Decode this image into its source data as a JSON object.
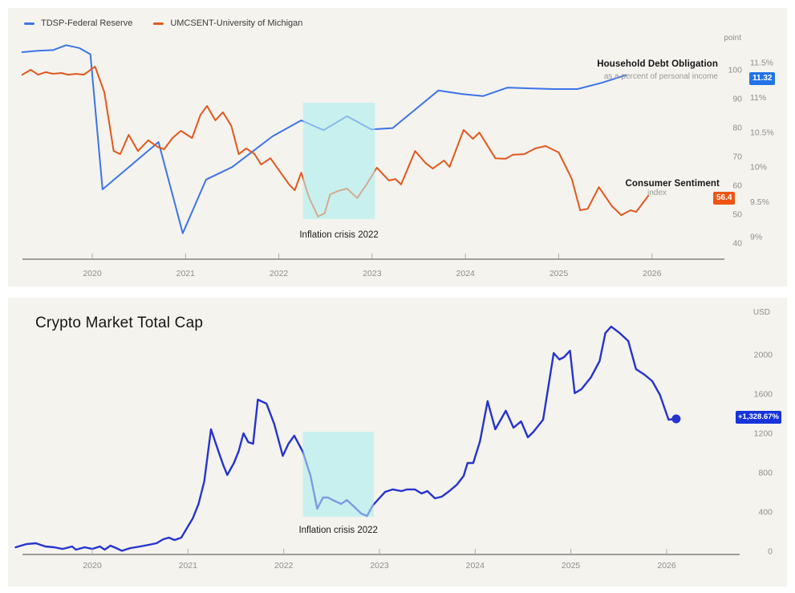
{
  "colors": {
    "panel_bg": "#F4F3EE",
    "blue": "#3D74E8",
    "orange": "#E2581F",
    "dark_blue": "#2534CE",
    "badge_blue": "#2273E8",
    "badge_orange": "#EF5414",
    "badge_dark_blue": "#1734DB",
    "band": "#C9EFEF",
    "axis_line": "#4a4a4a",
    "tick_text": "#8E8E8E"
  },
  "top_chart": {
    "right_labels": {
      "debt_title": "Household Debt Obligation",
      "debt_subtitle": "as a percent of personal income",
      "debt_badge": "11.32",
      "sentiment_title": "Consumer Sentiment",
      "sentiment_subtitle": "index",
      "sentiment_badge": "56.4"
    }
  },
  "bottom_chart": {
    "badge": "+1,328.67%"
  },
  "chart_data": [
    {
      "id": "debt_sentiment",
      "type": "line",
      "x_ticks": [
        2020,
        2021,
        2022,
        2023,
        2024,
        2025,
        2026
      ],
      "x_range": [
        2019.2,
        2026.78
      ],
      "legend_position": "top-left",
      "grid": false,
      "y_axes": [
        {
          "id": "percent",
          "side": "far-right",
          "range": [
            8.75,
            11.9
          ],
          "ticks": [
            {
              "label": "11.5%",
              "value": 11.5
            },
            {
              "label": "11%",
              "value": 11
            },
            {
              "label": "10.5%",
              "value": 10.5
            },
            {
              "label": "10%",
              "value": 10
            },
            {
              "label": "9.5%",
              "value": 9.5
            },
            {
              "label": "9%",
              "value": 9
            }
          ]
        },
        {
          "id": "index",
          "unit": "point",
          "side": "right",
          "range": [
            35,
            104
          ],
          "ticks": [
            {
              "label": "100",
              "value": 100
            },
            {
              "label": "90",
              "value": 90
            },
            {
              "label": "80",
              "value": 80
            },
            {
              "label": "70",
              "value": 70
            },
            {
              "label": "60",
              "value": 60
            },
            {
              "label": "50",
              "value": 50
            },
            {
              "label": "40",
              "value": 40
            }
          ]
        }
      ],
      "series": [
        {
          "name": "TDSP-Federal Reserve",
          "axis": "percent",
          "color_key": "blue",
          "last_value": 11.32,
          "points": [
            [
              2019.25,
              11.65
            ],
            [
              2019.42,
              11.67
            ],
            [
              2019.58,
              11.68
            ],
            [
              2019.72,
              11.75
            ],
            [
              2019.86,
              11.71
            ],
            [
              2019.98,
              11.62
            ],
            [
              2020.11,
              9.68
            ],
            [
              2020.71,
              10.36
            ],
            [
              2020.97,
              9.05
            ],
            [
              2021.22,
              9.82
            ],
            [
              2021.5,
              10.0
            ],
            [
              2021.93,
              10.44
            ],
            [
              2022.24,
              10.67
            ],
            [
              2022.48,
              10.53
            ],
            [
              2022.73,
              10.73
            ],
            [
              2022.99,
              10.54
            ],
            [
              2023.22,
              10.56
            ],
            [
              2023.71,
              11.1
            ],
            [
              2023.96,
              11.05
            ],
            [
              2024.19,
              11.02
            ],
            [
              2024.45,
              11.14
            ],
            [
              2024.69,
              11.13
            ],
            [
              2024.94,
              11.12
            ],
            [
              2025.2,
              11.12
            ],
            [
              2025.46,
              11.21
            ],
            [
              2025.72,
              11.32
            ]
          ]
        },
        {
          "name": "UMCSENT-University of Michigan",
          "axis": "index",
          "color_key": "orange",
          "last_value": 56.4,
          "points": [
            [
              2019.25,
              98.3
            ],
            [
              2019.34,
              100.0
            ],
            [
              2019.42,
              98.3
            ],
            [
              2019.5,
              99.2
            ],
            [
              2019.58,
              98.6
            ],
            [
              2019.67,
              98.9
            ],
            [
              2019.74,
              98.3
            ],
            [
              2019.83,
              98.6
            ],
            [
              2019.91,
              98.3
            ],
            [
              2020.03,
              101.1
            ],
            [
              2020.13,
              92.2
            ],
            [
              2020.23,
              71.9
            ],
            [
              2020.3,
              70.8
            ],
            [
              2020.39,
              77.5
            ],
            [
              2020.49,
              71.9
            ],
            [
              2020.6,
              75.6
            ],
            [
              2020.7,
              73.3
            ],
            [
              2020.77,
              72.5
            ],
            [
              2020.86,
              76.4
            ],
            [
              2020.95,
              78.9
            ],
            [
              2021.07,
              76.4
            ],
            [
              2021.16,
              84.4
            ],
            [
              2021.23,
              87.5
            ],
            [
              2021.32,
              82.5
            ],
            [
              2021.4,
              85.3
            ],
            [
              2021.49,
              80.6
            ],
            [
              2021.57,
              70.8
            ],
            [
              2021.65,
              72.8
            ],
            [
              2021.74,
              70.8
            ],
            [
              2021.81,
              67.2
            ],
            [
              2021.91,
              69.4
            ],
            [
              2022.02,
              64.4
            ],
            [
              2022.11,
              60.3
            ],
            [
              2022.17,
              58.3
            ],
            [
              2022.24,
              64.4
            ],
            [
              2022.32,
              56.1
            ],
            [
              2022.42,
              49.2
            ],
            [
              2022.49,
              50.3
            ],
            [
              2022.55,
              56.9
            ],
            [
              2022.64,
              58.1
            ],
            [
              2022.73,
              58.9
            ],
            [
              2022.84,
              55.6
            ],
            [
              2022.94,
              60.3
            ],
            [
              2023.05,
              66.1
            ],
            [
              2023.18,
              61.7
            ],
            [
              2023.25,
              62.2
            ],
            [
              2023.31,
              60.3
            ],
            [
              2023.46,
              71.9
            ],
            [
              2023.57,
              67.8
            ],
            [
              2023.65,
              65.8
            ],
            [
              2023.77,
              68.6
            ],
            [
              2023.83,
              66.4
            ],
            [
              2023.98,
              79.2
            ],
            [
              2024.08,
              76.1
            ],
            [
              2024.15,
              78.3
            ],
            [
              2024.32,
              69.4
            ],
            [
              2024.43,
              69.2
            ],
            [
              2024.51,
              70.6
            ],
            [
              2024.63,
              70.8
            ],
            [
              2024.75,
              72.8
            ],
            [
              2024.86,
              73.6
            ],
            [
              2025.0,
              71.4
            ],
            [
              2025.14,
              62.2
            ],
            [
              2025.23,
              51.4
            ],
            [
              2025.31,
              51.9
            ],
            [
              2025.43,
              59.4
            ],
            [
              2025.57,
              52.8
            ],
            [
              2025.67,
              49.7
            ],
            [
              2025.77,
              51.4
            ],
            [
              2025.83,
              50.8
            ],
            [
              2025.96,
              56.4
            ]
          ]
        }
      ],
      "annotations": [
        {
          "type": "band",
          "label": "Inflation crisis 2022",
          "x0": 2022.26,
          "x1": 2023.03
        }
      ]
    },
    {
      "id": "crypto",
      "type": "line",
      "title": "Crypto Market Total Cap",
      "x_ticks": [
        2020,
        2021,
        2022,
        2023,
        2024,
        2025,
        2026
      ],
      "x_range": [
        2019.2,
        2026.76
      ],
      "grid": false,
      "y_axes": [
        {
          "id": "usd",
          "unit": "USD",
          "side": "right",
          "range": [
            0,
            2300
          ],
          "ticks": [
            {
              "label": "2000",
              "value": 2000
            },
            {
              "label": "1600",
              "value": 1600
            },
            {
              "label": "1200",
              "value": 1200
            },
            {
              "label": "800",
              "value": 800
            },
            {
              "label": "400",
              "value": 400
            },
            {
              "label": "0",
              "value": 0
            }
          ]
        }
      ],
      "series": [
        {
          "name": "Crypto Market Total Cap",
          "axis": "usd",
          "color_key": "dark_blue",
          "width": 2.4,
          "end_dot": true,
          "change_badge": "+1,328.67%",
          "points": [
            [
              2019.2,
              41
            ],
            [
              2019.31,
              73
            ],
            [
              2019.41,
              82
            ],
            [
              2019.51,
              49
            ],
            [
              2019.6,
              41
            ],
            [
              2019.69,
              24
            ],
            [
              2019.79,
              49
            ],
            [
              2019.83,
              16
            ],
            [
              2019.92,
              41
            ],
            [
              2020.0,
              24
            ],
            [
              2020.08,
              49
            ],
            [
              2020.13,
              16
            ],
            [
              2020.19,
              57
            ],
            [
              2020.25,
              33
            ],
            [
              2020.31,
              5
            ],
            [
              2020.4,
              33
            ],
            [
              2020.5,
              49
            ],
            [
              2020.59,
              65
            ],
            [
              2020.67,
              82
            ],
            [
              2020.74,
              122
            ],
            [
              2020.8,
              139
            ],
            [
              2020.86,
              114
            ],
            [
              2020.93,
              139
            ],
            [
              2020.98,
              220
            ],
            [
              2021.05,
              335
            ],
            [
              2021.11,
              482
            ],
            [
              2021.17,
              710
            ],
            [
              2021.24,
              1241
            ],
            [
              2021.32,
              1012
            ],
            [
              2021.37,
              873
            ],
            [
              2021.41,
              776
            ],
            [
              2021.48,
              898
            ],
            [
              2021.53,
              1020
            ],
            [
              2021.58,
              1200
            ],
            [
              2021.63,
              1110
            ],
            [
              2021.68,
              1094
            ],
            [
              2021.73,
              1543
            ],
            [
              2021.82,
              1502
            ],
            [
              2021.9,
              1298
            ],
            [
              2021.99,
              971
            ],
            [
              2022.05,
              1094
            ],
            [
              2022.11,
              1176
            ],
            [
              2022.2,
              1012
            ],
            [
              2022.28,
              767
            ],
            [
              2022.35,
              433
            ],
            [
              2022.41,
              547
            ],
            [
              2022.46,
              547
            ],
            [
              2022.51,
              522
            ],
            [
              2022.6,
              482
            ],
            [
              2022.66,
              522
            ],
            [
              2022.74,
              449
            ],
            [
              2022.81,
              384
            ],
            [
              2022.87,
              359
            ],
            [
              2022.93,
              465
            ],
            [
              2022.99,
              531
            ],
            [
              2023.06,
              604
            ],
            [
              2023.14,
              629
            ],
            [
              2023.23,
              612
            ],
            [
              2023.29,
              629
            ],
            [
              2023.37,
              629
            ],
            [
              2023.44,
              588
            ],
            [
              2023.5,
              612
            ],
            [
              2023.58,
              539
            ],
            [
              2023.65,
              555
            ],
            [
              2023.73,
              612
            ],
            [
              2023.81,
              678
            ],
            [
              2023.88,
              767
            ],
            [
              2023.92,
              898
            ],
            [
              2023.98,
              898
            ],
            [
              2024.05,
              1118
            ],
            [
              2024.13,
              1527
            ],
            [
              2024.21,
              1241
            ],
            [
              2024.32,
              1429
            ],
            [
              2024.4,
              1257
            ],
            [
              2024.48,
              1322
            ],
            [
              2024.55,
              1159
            ],
            [
              2024.61,
              1216
            ],
            [
              2024.71,
              1339
            ],
            [
              2024.82,
              2016
            ],
            [
              2024.88,
              1951
            ],
            [
              2024.93,
              1976
            ],
            [
              2024.99,
              2041
            ],
            [
              2025.04,
              1608
            ],
            [
              2025.11,
              1649
            ],
            [
              2025.21,
              1771
            ],
            [
              2025.3,
              1935
            ],
            [
              2025.36,
              2220
            ],
            [
              2025.42,
              2286
            ],
            [
              2025.51,
              2220
            ],
            [
              2025.6,
              2139
            ],
            [
              2025.68,
              1853
            ],
            [
              2025.77,
              1796
            ],
            [
              2025.85,
              1731
            ],
            [
              2025.93,
              1592
            ],
            [
              2026.02,
              1339
            ],
            [
              2026.1,
              1347
            ]
          ]
        }
      ],
      "annotations": [
        {
          "type": "band",
          "label": "Inflation crisis 2022",
          "x0": 2022.2,
          "x1": 2022.94
        }
      ]
    }
  ]
}
